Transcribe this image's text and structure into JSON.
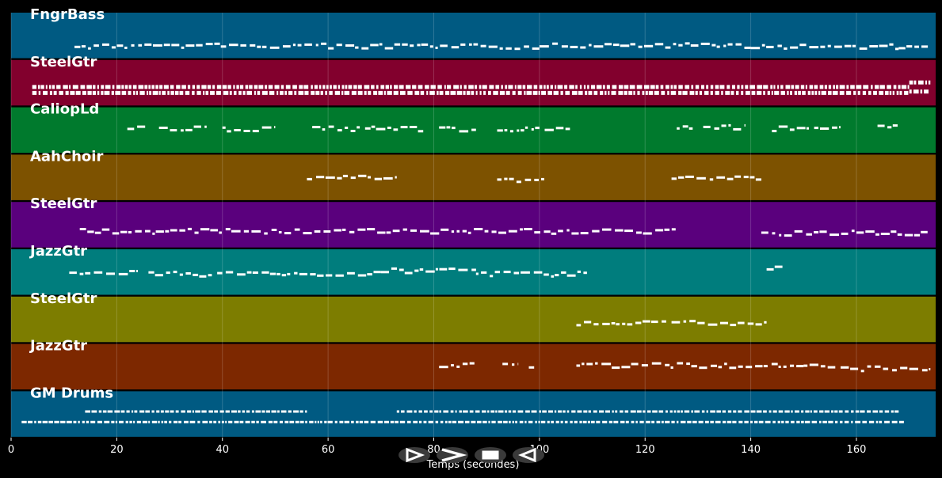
{
  "chart_data": {
    "type": "piano-roll",
    "xlabel": "Temps (secondes)",
    "xlim": [
      0,
      175
    ],
    "xticks": [
      0,
      20,
      40,
      60,
      80,
      100,
      120,
      140,
      160
    ],
    "grid": true,
    "tracks": [
      {
        "name": "FngrBass",
        "color": "#005a82",
        "segments": [
          [
            12,
            20,
            0.72
          ],
          [
            20,
            60,
            0.7
          ],
          [
            60,
            100,
            0.72
          ],
          [
            100,
            140,
            0.7
          ],
          [
            140,
            168,
            0.72
          ],
          [
            168,
            174,
            0.75
          ]
        ]
      },
      {
        "name": "SteelGtr",
        "color": "#82002d",
        "segments": [
          [
            4,
            48,
            0.55
          ],
          [
            4,
            48,
            0.68
          ],
          [
            48,
            170,
            0.55
          ],
          [
            48,
            170,
            0.68
          ],
          [
            170,
            174,
            0.45
          ],
          [
            170,
            174,
            0.65
          ]
        ]
      },
      {
        "name": "CaliopLd",
        "color": "#007a2d",
        "segments": [
          [
            22,
            26,
            0.45
          ],
          [
            28,
            37,
            0.45
          ],
          [
            40,
            50,
            0.45
          ],
          [
            57,
            66,
            0.45
          ],
          [
            67,
            78,
            0.45
          ],
          [
            81,
            88,
            0.45
          ],
          [
            92,
            100,
            0.45
          ],
          [
            101,
            106,
            0.45
          ],
          [
            126,
            129,
            0.42
          ],
          [
            131,
            139,
            0.42
          ],
          [
            144,
            151,
            0.45
          ],
          [
            152,
            157,
            0.45
          ],
          [
            164,
            168,
            0.38
          ]
        ]
      },
      {
        "name": "AahChoir",
        "color": "#7d5200",
        "segments": [
          [
            56,
            73,
            0.48
          ],
          [
            92,
            101,
            0.52
          ],
          [
            125,
            142,
            0.5
          ]
        ]
      },
      {
        "name": "SteelGtr",
        "color": "#5a007d",
        "segments": [
          [
            13,
            126,
            0.62
          ],
          [
            142,
            174,
            0.66
          ]
        ]
      },
      {
        "name": "JazzGtr",
        "color": "#007d7d",
        "segments": [
          [
            11,
            24,
            0.5
          ],
          [
            26,
            38,
            0.52
          ],
          [
            39,
            70,
            0.52
          ],
          [
            70,
            88,
            0.45
          ],
          [
            88,
            109,
            0.52
          ],
          [
            143,
            146,
            0.38
          ]
        ]
      },
      {
        "name": "SteelGtr",
        "color": "#7d7d00",
        "segments": [
          [
            107,
            124,
            0.55
          ],
          [
            125,
            143,
            0.55
          ]
        ]
      },
      {
        "name": "JazzGtr",
        "color": "#7d2800",
        "segments": [
          [
            81,
            88,
            0.45
          ],
          [
            93,
            96,
            0.38
          ],
          [
            98,
            99,
            0.45
          ],
          [
            107,
            150,
            0.45
          ],
          [
            150,
            156,
            0.47
          ],
          [
            157,
            174,
            0.52
          ]
        ]
      },
      {
        "name": "GM Drums",
        "color": "#005a82",
        "segments": [
          [
            14,
            56,
            0.42
          ],
          [
            73,
            168,
            0.42
          ],
          [
            2,
            169,
            0.65
          ]
        ]
      }
    ]
  },
  "controls": [
    {
      "name": "play-icon"
    },
    {
      "name": "fast-forward-icon"
    },
    {
      "name": "stop-icon"
    },
    {
      "name": "rewind-icon"
    }
  ]
}
